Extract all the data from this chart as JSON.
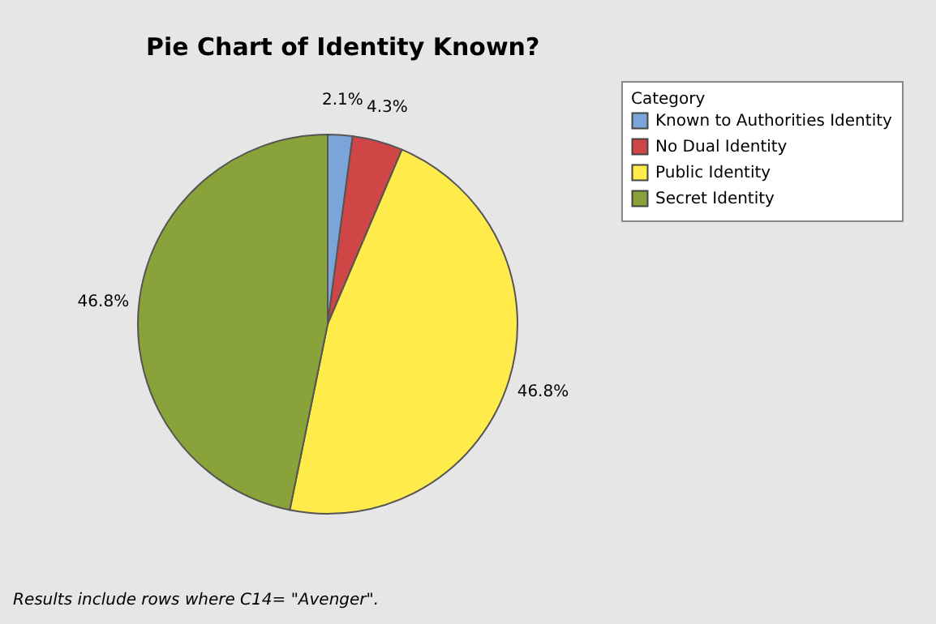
{
  "chart_data": {
    "type": "pie",
    "title": "Pie Chart of Identity Known?",
    "legend_title": "Category",
    "categories": [
      "Known to Authorities Identity",
      "No Dual Identity",
      "Public Identity",
      "Secret Identity"
    ],
    "values": [
      2.1,
      4.3,
      46.8,
      46.8
    ],
    "colors": [
      "#7ba5d8",
      "#d04545",
      "#ffeb4a",
      "#89a33a"
    ],
    "value_labels": [
      "2.1%",
      "4.3%",
      "46.8%",
      "46.8%"
    ],
    "legend": "top right",
    "annotations": [
      "Results include rows where C14= \"Avenger\"."
    ]
  }
}
